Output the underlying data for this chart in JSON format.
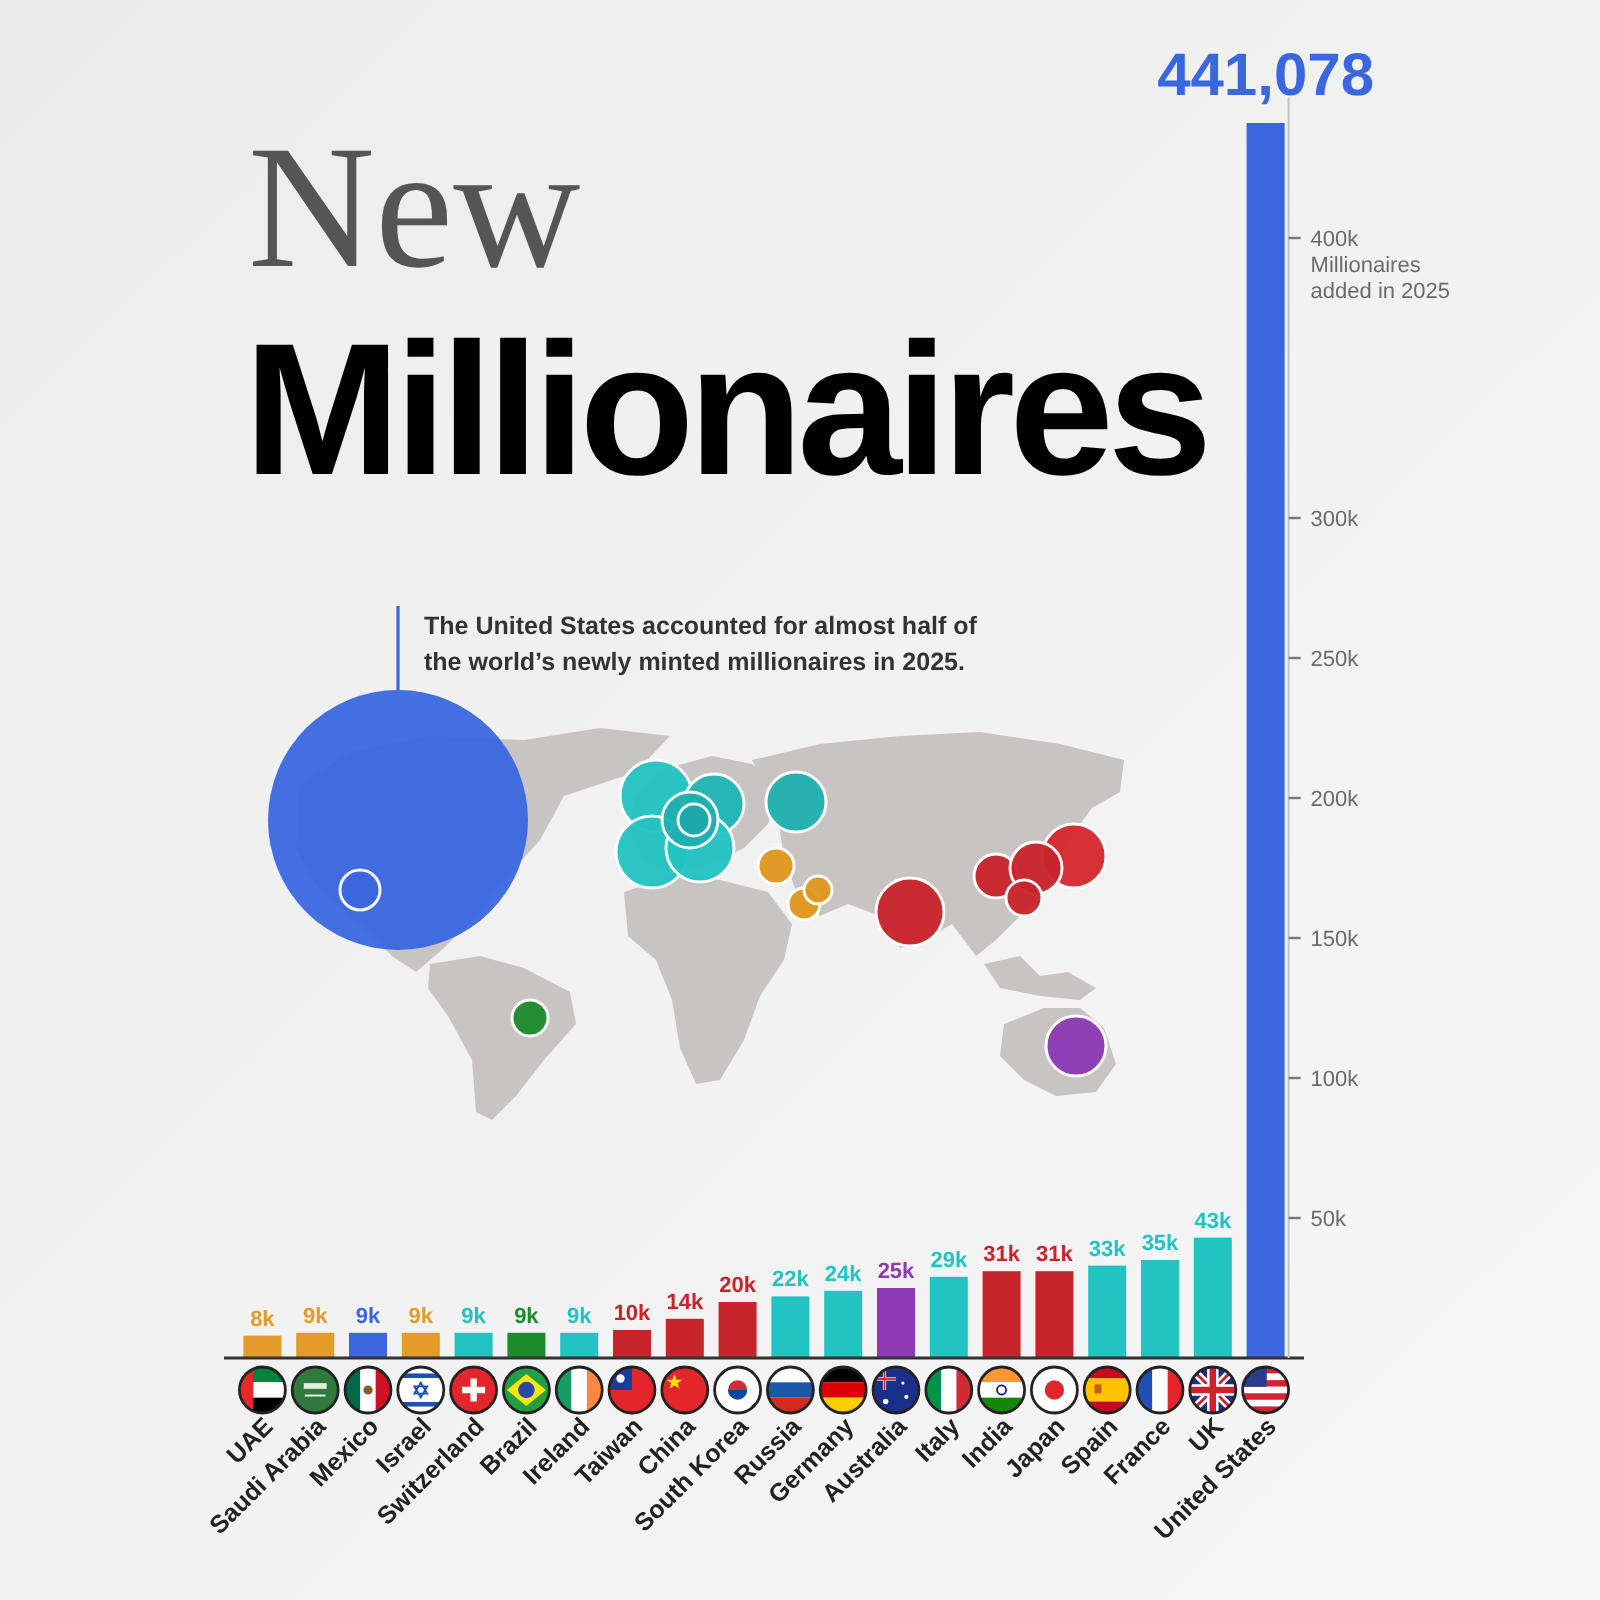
{
  "chart_data": {
    "type": "bar",
    "title": "New Millionaires",
    "ylabel": "Millionaires added in 2025",
    "categories": [
      "UAE",
      "Saudi Arabia",
      "Mexico",
      "Israel",
      "Switzerland",
      "Brazil",
      "Ireland",
      "Taiwan",
      "China",
      "South Korea",
      "Russia",
      "Germany",
      "Australia",
      "Italy",
      "India",
      "Japan",
      "Spain",
      "France",
      "UK",
      "United States"
    ],
    "values": [
      8000,
      9000,
      9000,
      9000,
      9000,
      9000,
      9000,
      10000,
      14000,
      20000,
      22000,
      24000,
      25000,
      29000,
      31000,
      31000,
      33000,
      35000,
      43000,
      441078
    ],
    "colors": [
      "#e39b2a",
      "#e39b2a",
      "#3a67e0",
      "#e39b2a",
      "#22c3c3",
      "#1c8c2c",
      "#22c3c3",
      "#c8242b",
      "#c8242b",
      "#c8242b",
      "#22c3c3",
      "#22c3c3",
      "#8e39b5",
      "#22c3c3",
      "#c8242b",
      "#c8242b",
      "#22c3c3",
      "#22c3c3",
      "#22c3c3",
      "#3a67e0"
    ],
    "value_labels": [
      "8k",
      "9k",
      "9k",
      "9k",
      "9k",
      "9k",
      "9k",
      "10k",
      "14k",
      "20k",
      "22k",
      "24k",
      "25k",
      "29k",
      "31k",
      "31k",
      "33k",
      "35k",
      "43k",
      "441,078"
    ],
    "ylim": [
      0,
      450000
    ],
    "yticks": [
      {
        "value": 50000,
        "label": "50k"
      },
      {
        "value": 100000,
        "label": "100k"
      },
      {
        "value": 150000,
        "label": "150k"
      },
      {
        "value": 200000,
        "label": "200k"
      },
      {
        "value": 250000,
        "label": "250k"
      },
      {
        "value": 300000,
        "label": "300k"
      },
      {
        "value": 400000,
        "label": "400k"
      }
    ],
    "annotations": [
      "The United States accounted for almost half of the world’s newly minted millionaires in 2025."
    ]
  }
}
